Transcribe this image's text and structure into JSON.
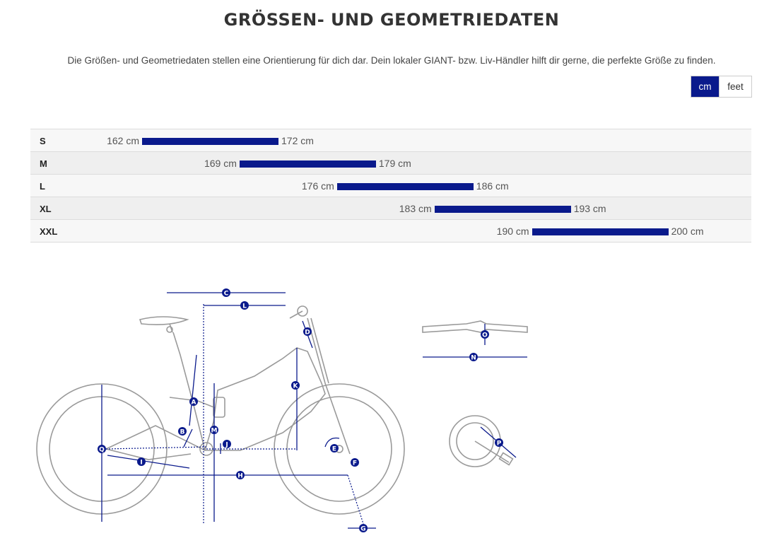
{
  "header": {
    "title": "GRÖSSEN- UND GEOMETRIEDATEN",
    "intro": "Die Größen- und Geometriedaten stellen eine Orientierung für dich dar. Dein lokaler GIANT- bzw. Liv-Händler hilft dir gerne, die perfekte Größe zu finden."
  },
  "units": {
    "options": [
      "cm",
      "feet"
    ],
    "selected": "cm"
  },
  "sizes": [
    {
      "label": "S",
      "min": "162 cm",
      "max": "172 cm",
      "min_value": 162,
      "max_value": 172
    },
    {
      "label": "M",
      "min": "169 cm",
      "max": "179 cm",
      "min_value": 169,
      "max_value": 179
    },
    {
      "label": "L",
      "min": "176 cm",
      "max": "186 cm",
      "min_value": 176,
      "max_value": 186
    },
    {
      "label": "XL",
      "min": "183 cm",
      "max": "193 cm",
      "min_value": 183,
      "max_value": 193
    },
    {
      "label": "XXL",
      "min": "190 cm",
      "max": "200 cm",
      "min_value": 190,
      "max_value": 200
    }
  ],
  "diagram": {
    "markers": [
      "A",
      "B",
      "C",
      "D",
      "E",
      "F",
      "G",
      "H",
      "I",
      "J",
      "K",
      "L",
      "M",
      "N",
      "O",
      "P",
      "Q"
    ]
  },
  "colors": {
    "accent": "#0a1a8c",
    "bike_line": "#9a9a9a"
  }
}
